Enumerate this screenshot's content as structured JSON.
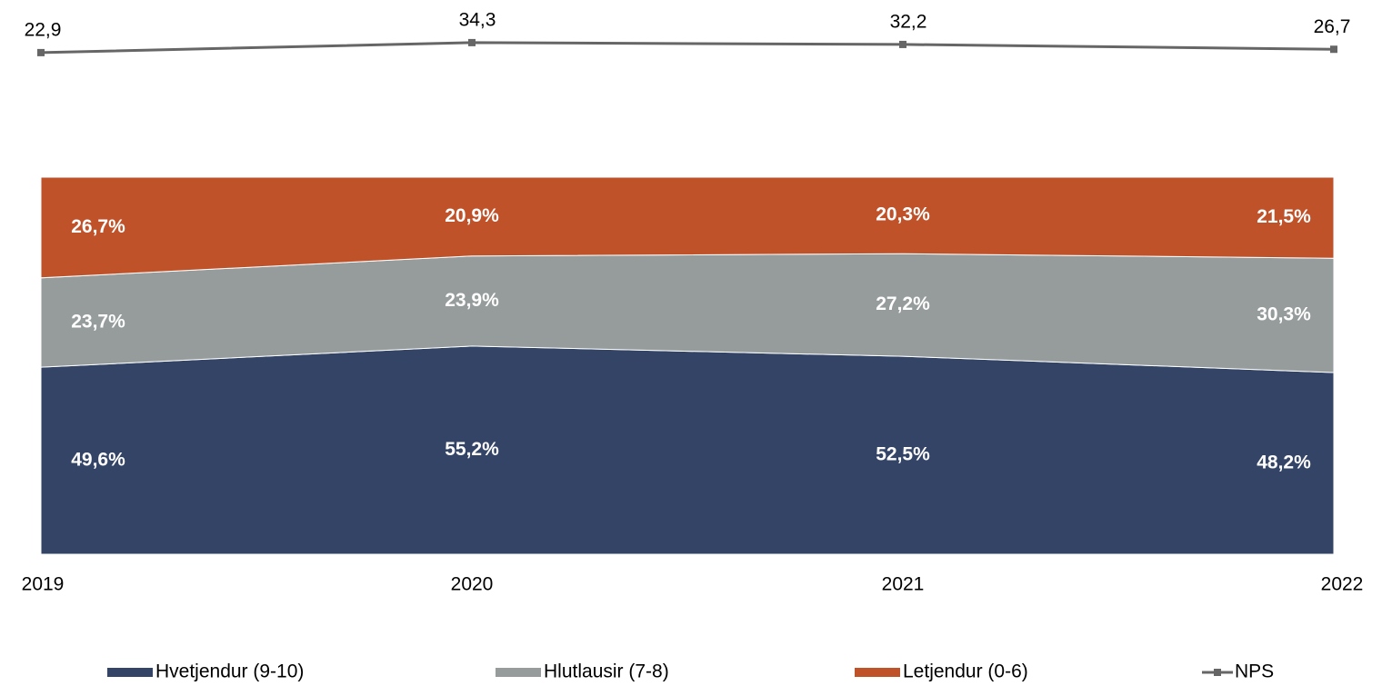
{
  "chart_data": {
    "type": "area",
    "stacked": true,
    "categories": [
      "2019",
      "2020",
      "2021",
      "2022"
    ],
    "series": [
      {
        "name": "Hvetjendur (9-10)",
        "color": "#334467",
        "values": [
          49.6,
          55.2,
          52.5,
          48.2
        ],
        "value_labels": [
          "49,6%",
          "55,2%",
          "52,5%",
          "48,2%"
        ]
      },
      {
        "name": "Hlutlausir (7-8)",
        "color": "#969c9c",
        "values": [
          23.7,
          23.9,
          27.2,
          30.3
        ],
        "value_labels": [
          "23,7%",
          "23,9%",
          "27,2%",
          "30,3%"
        ]
      },
      {
        "name": "Letjendur (0-6)",
        "color": "#c0522a",
        "values": [
          26.7,
          20.9,
          20.3,
          21.5
        ],
        "value_labels": [
          "26,7%",
          "20,9%",
          "20,3%",
          "21,5%"
        ]
      },
      {
        "name": "NPS",
        "type": "line",
        "axis": "y2",
        "color": "#666666",
        "values": [
          22.9,
          34.3,
          32.2,
          26.7
        ],
        "value_labels": [
          "22,9",
          "34,3",
          "32,2",
          "26,7"
        ]
      }
    ],
    "ylim": [
      0,
      100
    ],
    "y2lim": [
      0,
      40
    ],
    "legend": "bottom"
  }
}
